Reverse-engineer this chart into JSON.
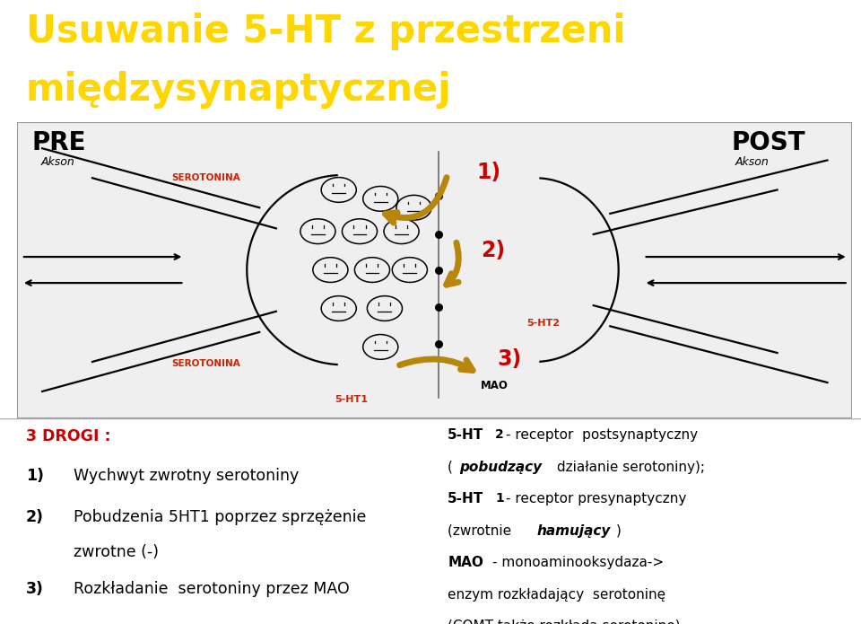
{
  "title_line1": "Usuwanie 5-HT z przestrzeni",
  "title_line2": "międzysynaptycznej",
  "title_color": "#FFD700",
  "title_bg": "#000000",
  "pre_label": "PRE",
  "post_label": "POST",
  "akson_label": "Akson",
  "serotonina_label": "SEROTONINA",
  "serotonina_color": "#CC2200",
  "label_5ht1": "5-HT1",
  "label_5ht2": "5-HT2",
  "label_mao": "MAO",
  "label_5ht_color": "#CC2200",
  "arrow_color": "#B8860B",
  "num_color": "#CC0000",
  "left_title": "3 DROGI :",
  "left_title_color": "#CC0000",
  "bg_color": "#FFFFFF",
  "diagram_border": "#999999",
  "text_color": "#000000",
  "diag_facecolor": "#EFEFEF"
}
